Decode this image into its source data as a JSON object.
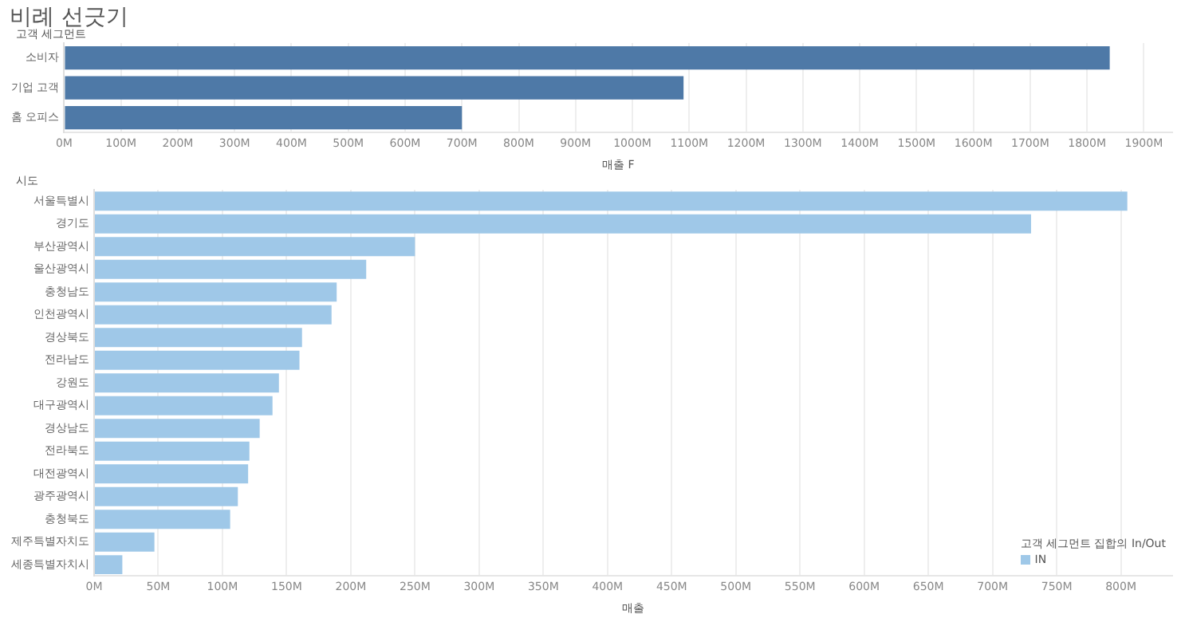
{
  "chart_data": [
    {
      "type": "bar",
      "title": "비례 선긋기",
      "orientation": "horizontal",
      "ylabel": "고객 세그먼트",
      "xlabel": "매출 F",
      "categories": [
        "소비자",
        "기업 고객",
        "홈 오피스"
      ],
      "series": [
        {
          "color": "#4e79a7",
          "values": [
            1840,
            1090,
            700
          ]
        }
      ],
      "xlim": [
        0,
        1950
      ],
      "xticks": [
        {
          "value": 0,
          "label": "0M"
        },
        {
          "value": 100,
          "label": "100M"
        },
        {
          "value": 200,
          "label": "200M"
        },
        {
          "value": 300,
          "label": "300M"
        },
        {
          "value": 400,
          "label": "400M"
        },
        {
          "value": 500,
          "label": "500M"
        },
        {
          "value": 600,
          "label": "600M"
        },
        {
          "value": 700,
          "label": "700M"
        },
        {
          "value": 800,
          "label": "800M"
        },
        {
          "value": 900,
          "label": "900M"
        },
        {
          "value": 1000,
          "label": "1000M"
        },
        {
          "value": 1100,
          "label": "1100M"
        },
        {
          "value": 1200,
          "label": "1200M"
        },
        {
          "value": 1300,
          "label": "1300M"
        },
        {
          "value": 1400,
          "label": "1400M"
        },
        {
          "value": 1500,
          "label": "1500M"
        },
        {
          "value": 1600,
          "label": "1600M"
        },
        {
          "value": 1700,
          "label": "1700M"
        },
        {
          "value": 1800,
          "label": "1800M"
        },
        {
          "value": 1900,
          "label": "1900M"
        }
      ],
      "grid": "x",
      "legend": false
    },
    {
      "type": "bar",
      "orientation": "horizontal",
      "ylabel": "시도",
      "xlabel": "매출",
      "legend_title": "고객 세그먼트 집합의 In/Out",
      "categories": [
        "서울특별시",
        "경기도",
        "부산광역시",
        "울산광역시",
        "충청남도",
        "인천광역시",
        "경상북도",
        "전라남도",
        "강원도",
        "대구광역시",
        "경상남도",
        "전라북도",
        "대전광역시",
        "광주광역시",
        "충청북도",
        "제주특별자치도",
        "세종특별자치시"
      ],
      "series": [
        {
          "name": "IN",
          "color": "#9fc8e8",
          "values": [
            805,
            730,
            250,
            212,
            189,
            185,
            162,
            160,
            144,
            139,
            129,
            121,
            120,
            112,
            106,
            47,
            22
          ]
        }
      ],
      "xlim": [
        0,
        840
      ],
      "xticks": [
        {
          "value": 0,
          "label": "0M"
        },
        {
          "value": 50,
          "label": "50M"
        },
        {
          "value": 100,
          "label": "100M"
        },
        {
          "value": 150,
          "label": "150M"
        },
        {
          "value": 200,
          "label": "200M"
        },
        {
          "value": 250,
          "label": "250M"
        },
        {
          "value": 300,
          "label": "300M"
        },
        {
          "value": 350,
          "label": "350M"
        },
        {
          "value": 400,
          "label": "400M"
        },
        {
          "value": 450,
          "label": "450M"
        },
        {
          "value": 500,
          "label": "500M"
        },
        {
          "value": 550,
          "label": "550M"
        },
        {
          "value": 600,
          "label": "600M"
        },
        {
          "value": 650,
          "label": "650M"
        },
        {
          "value": 700,
          "label": "700M"
        },
        {
          "value": 750,
          "label": "750M"
        },
        {
          "value": 800,
          "label": "800M"
        }
      ],
      "grid": "x",
      "legend": "bottom right"
    }
  ]
}
